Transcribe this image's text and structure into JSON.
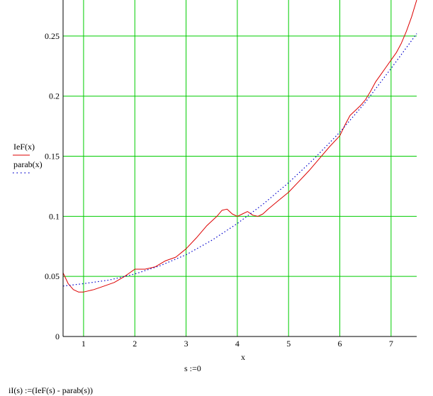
{
  "chart_data": {
    "type": "line",
    "xlabel": "x",
    "ylabel": "",
    "xlim": [
      0.6,
      7.5
    ],
    "ylim": [
      0,
      0.28
    ],
    "xticks": [
      "1",
      "2",
      "3",
      "4",
      "5",
      "6",
      "7"
    ],
    "yticks": [
      "0",
      "0.05",
      "0.1",
      "0.15",
      "0.2",
      "0.25"
    ],
    "grid": true,
    "grid_color": "#00cc00",
    "legend": {
      "placement": "left"
    },
    "series": [
      {
        "name": "IeF(x)",
        "color": "#dd0000",
        "style": "solid",
        "x": [
          0.6,
          0.7,
          0.8,
          0.9,
          1.0,
          1.2,
          1.4,
          1.6,
          1.8,
          1.9,
          2.0,
          2.2,
          2.4,
          2.6,
          2.8,
          3.0,
          3.2,
          3.4,
          3.6,
          3.7,
          3.8,
          3.9,
          4.0,
          4.1,
          4.2,
          4.3,
          4.4,
          4.5,
          4.6,
          4.8,
          5.0,
          5.2,
          5.4,
          5.6,
          5.8,
          6.0,
          6.1,
          6.2,
          6.3,
          6.4,
          6.5,
          6.6,
          6.7,
          6.8,
          6.9,
          7.0,
          7.1,
          7.2,
          7.3,
          7.4,
          7.5
        ],
        "y": [
          0.053,
          0.044,
          0.039,
          0.037,
          0.037,
          0.039,
          0.042,
          0.045,
          0.05,
          0.053,
          0.056,
          0.056,
          0.058,
          0.063,
          0.066,
          0.073,
          0.082,
          0.092,
          0.1,
          0.105,
          0.106,
          0.102,
          0.1,
          0.102,
          0.104,
          0.101,
          0.1,
          0.102,
          0.106,
          0.113,
          0.12,
          0.129,
          0.138,
          0.148,
          0.158,
          0.167,
          0.176,
          0.184,
          0.188,
          0.192,
          0.197,
          0.204,
          0.212,
          0.218,
          0.224,
          0.23,
          0.236,
          0.244,
          0.254,
          0.266,
          0.28
        ]
      },
      {
        "name": "parab(x)",
        "color": "#0000cc",
        "style": "dotted",
        "x": [
          0.6,
          0.8,
          1.0,
          1.5,
          2.0,
          2.5,
          3.0,
          3.5,
          4.0,
          4.5,
          5.0,
          5.5,
          6.0,
          6.5,
          7.0,
          7.5
        ],
        "y": [
          0.042,
          0.043,
          0.044,
          0.047,
          0.052,
          0.059,
          0.068,
          0.08,
          0.094,
          0.11,
          0.128,
          0.148,
          0.17,
          0.195,
          0.223,
          0.252
        ]
      }
    ]
  },
  "formulas": {
    "assignment": "s :=0",
    "definition": "iI(s) :=(IeF(s) -  parab(s))"
  }
}
